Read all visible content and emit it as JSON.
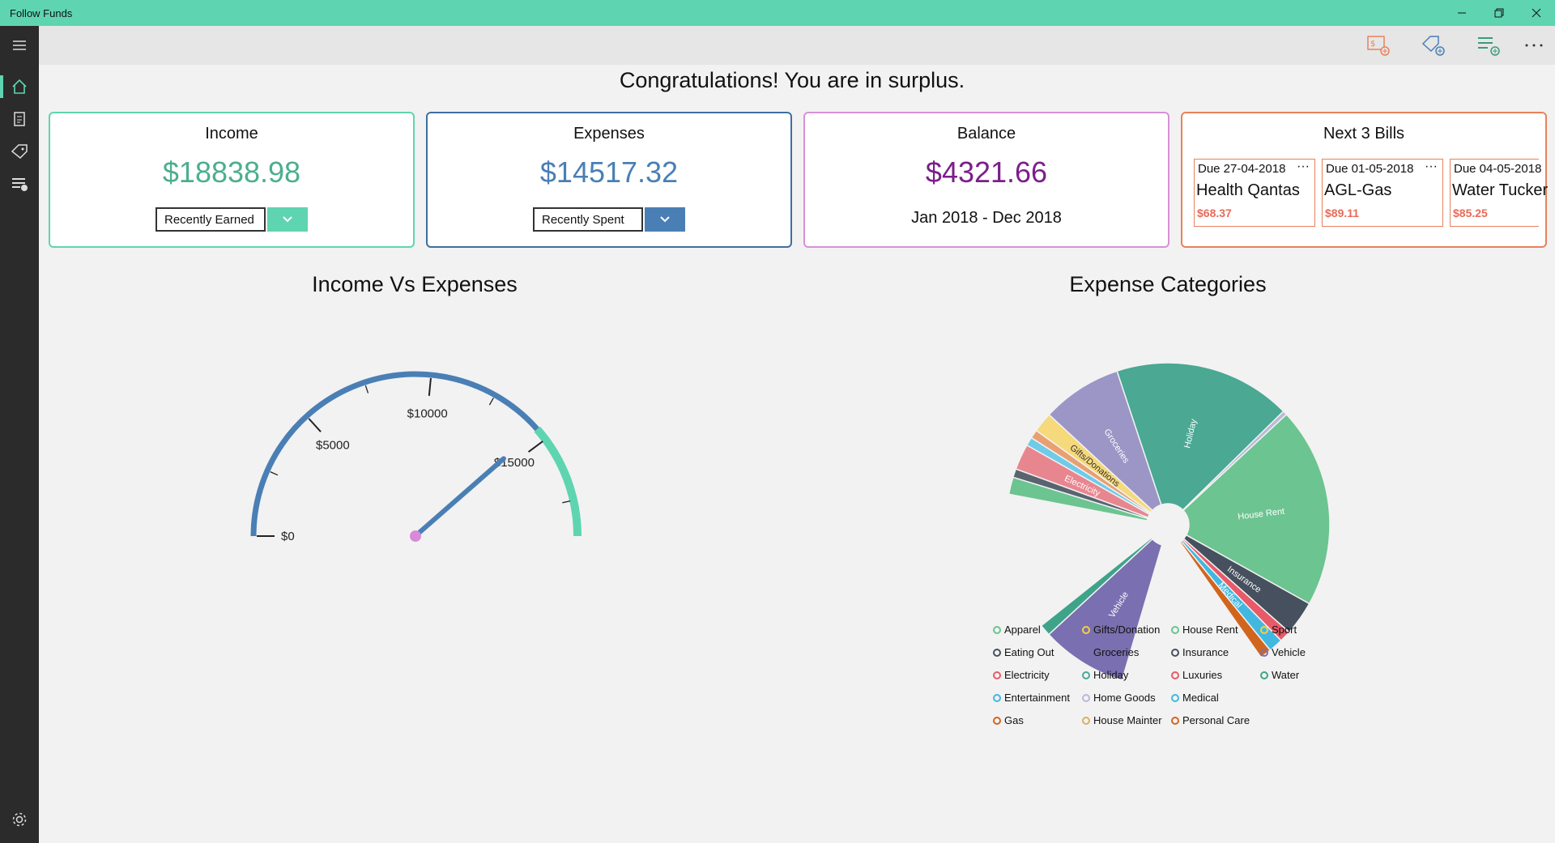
{
  "window": {
    "title": "Follow Funds"
  },
  "headline": "Congratulations! You are in surplus.",
  "cards": {
    "income": {
      "title": "Income",
      "amount": "$18838.98",
      "dropdown_value": "Recently Earned",
      "color": "#4caf8c"
    },
    "expenses": {
      "title": "Expenses",
      "amount": "$14517.32",
      "dropdown_value": "Recently Spent",
      "color": "#4a7fb5"
    },
    "balance": {
      "title": "Balance",
      "amount": "$4321.66",
      "period": "Jan 2018 - Dec 2018",
      "color": "#7b1f8a"
    },
    "bills": {
      "title": "Next 3 Bills",
      "items": [
        {
          "due": "Due 27-04-2018",
          "name": "Health Qantas",
          "amount": "$68.37",
          "more": "···"
        },
        {
          "due": "Due 01-05-2018",
          "name": "AGL-Gas",
          "amount": "$89.11",
          "more": "···"
        },
        {
          "due": "Due 04-05-2018",
          "name": "Water Tucker",
          "amount": "$85.25",
          "more": "···"
        }
      ]
    }
  },
  "gauge": {
    "title": "Income Vs Expenses",
    "max": 18838.98,
    "value": 14517.32,
    "labels": [
      "$0",
      "$5000",
      "$10000",
      "$15000"
    ],
    "label_values": [
      0,
      5000,
      10000,
      15000
    ],
    "expense_color": "#4a7fb5",
    "income_color": "#5ed5b0",
    "needle_color": "#4a7fb5",
    "pivot_color": "#d88ad8"
  },
  "chart_data": {
    "type": "pie",
    "title": "Expense Categories",
    "slice_labels": [
      "Holiday",
      "House Rent",
      "Insurance",
      "Medical",
      "Vehicle",
      "Groceries",
      "Gifts/Donations",
      "Electricity"
    ],
    "slices": [
      {
        "name": "Holiday",
        "value": 62,
        "color": "#4aa893",
        "label": "Holiday"
      },
      {
        "name": "Home Goods",
        "value": 1.5,
        "color": "#b9b9d8"
      },
      {
        "name": "House Rent",
        "value": 70,
        "color": "#6cc490",
        "label": "House Rent"
      },
      {
        "name": "Insurance",
        "value": 12,
        "color": "#46505e",
        "label": "Insurance"
      },
      {
        "name": "Luxuries",
        "value": 4,
        "color": "#e85a68"
      },
      {
        "name": "Medical",
        "value": 5,
        "color": "#42b8e0",
        "label": "Medical"
      },
      {
        "name": "Personal Care",
        "value": 4,
        "color": "#d2651e"
      },
      {
        "name": "Gap",
        "value": 50,
        "color": "none"
      },
      {
        "name": "Vehicle",
        "value": 30,
        "color": "#7a6fb0",
        "label": "Vehicle"
      },
      {
        "name": "Water",
        "value": 4,
        "color": "#3fa38a"
      },
      {
        "name": "Gap",
        "value": 48,
        "color": "none"
      },
      {
        "name": "Apparel",
        "value": 6,
        "color": "#6cc490"
      },
      {
        "name": "Eating Out",
        "value": 3,
        "color": "#5a6470"
      },
      {
        "name": "Electricity",
        "value": 9,
        "color": "#e8868f",
        "label": "Electricity"
      },
      {
        "name": "Entertainment",
        "value": 3,
        "color": "#6fcbe8"
      },
      {
        "name": "Gas",
        "value": 3,
        "color": "#e8a073"
      },
      {
        "name": "Gifts/Donations",
        "value": 7,
        "color": "#f5d97a",
        "label": "Gifts/Donations"
      },
      {
        "name": "Groceries",
        "value": 28,
        "color": "#9b96c6",
        "label": "Groceries"
      }
    ]
  },
  "legend": [
    {
      "name": "Apparel",
      "color": "#6cc490"
    },
    {
      "name": "Eating Out",
      "color": "#46505e"
    },
    {
      "name": "Electricity",
      "color": "#e85a68"
    },
    {
      "name": "Entertainment",
      "color": "#42b8e0"
    },
    {
      "name": "Gas",
      "color": "#d2651e"
    },
    {
      "name": "Gifts/Donation",
      "color": "#f5d040"
    },
    {
      "name": "Groceries",
      "color": "#7a6fb0"
    },
    {
      "name": "Holiday",
      "color": "#4aa893"
    },
    {
      "name": "Home Goods",
      "color": "#b9b9d8"
    },
    {
      "name": "House Mainter",
      "color": "#d9b060"
    },
    {
      "name": "House Rent",
      "color": "#6cc490"
    },
    {
      "name": "Insurance",
      "color": "#46505e"
    },
    {
      "name": "Luxuries",
      "color": "#e85a68"
    },
    {
      "name": "Medical",
      "color": "#42b8e0"
    },
    {
      "name": "Personal Care",
      "color": "#d2651e"
    },
    {
      "name": "Sport",
      "color": "#f5d040"
    },
    {
      "name": "Vehicle",
      "color": "#7a6fb0"
    },
    {
      "name": "Water",
      "color": "#3fa38a"
    }
  ],
  "icons": {
    "sidebar": [
      "hamburger-icon",
      "home-icon",
      "invoice-icon",
      "tag-icon",
      "money-list-icon",
      "gear-icon"
    ],
    "commands": [
      "add-bill-icon",
      "add-expense-icon",
      "add-income-icon",
      "more-icon"
    ]
  }
}
